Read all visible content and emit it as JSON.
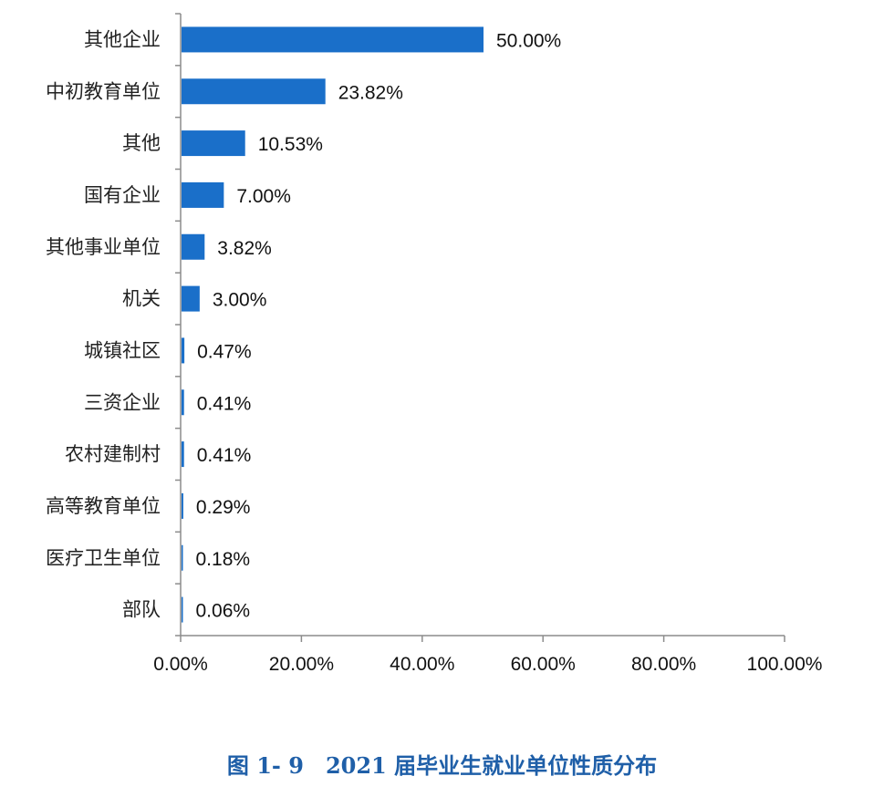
{
  "chart_data": {
    "type": "bar",
    "orientation": "horizontal",
    "categories": [
      "其他企业",
      "中初教育单位",
      "其他",
      "国有企业",
      "其他事业单位",
      "机关",
      "城镇社区",
      "三资企业",
      "农村建制村",
      "高等教育单位",
      "医疗卫生单位",
      "部队"
    ],
    "values": [
      50.0,
      23.82,
      10.53,
      7.0,
      3.82,
      3.0,
      0.47,
      0.41,
      0.41,
      0.29,
      0.18,
      0.06
    ],
    "value_labels": [
      "50.00%",
      "23.82%",
      "10.53%",
      "7.00%",
      "3.82%",
      "3.00%",
      "0.47%",
      "0.41%",
      "0.41%",
      "0.29%",
      "0.18%",
      "0.06%"
    ],
    "xlim": [
      0,
      100
    ],
    "xticks": [
      0,
      20,
      40,
      60,
      80,
      100
    ],
    "xtick_labels": [
      "0.00%",
      "20.00%",
      "40.00%",
      "60.00%",
      "80.00%",
      "100.00%"
    ],
    "grid": false,
    "legend": "none",
    "bar_color": "#1a6fc9"
  },
  "caption": "图 1- 9　2021 届毕业生就业单位性质分布"
}
